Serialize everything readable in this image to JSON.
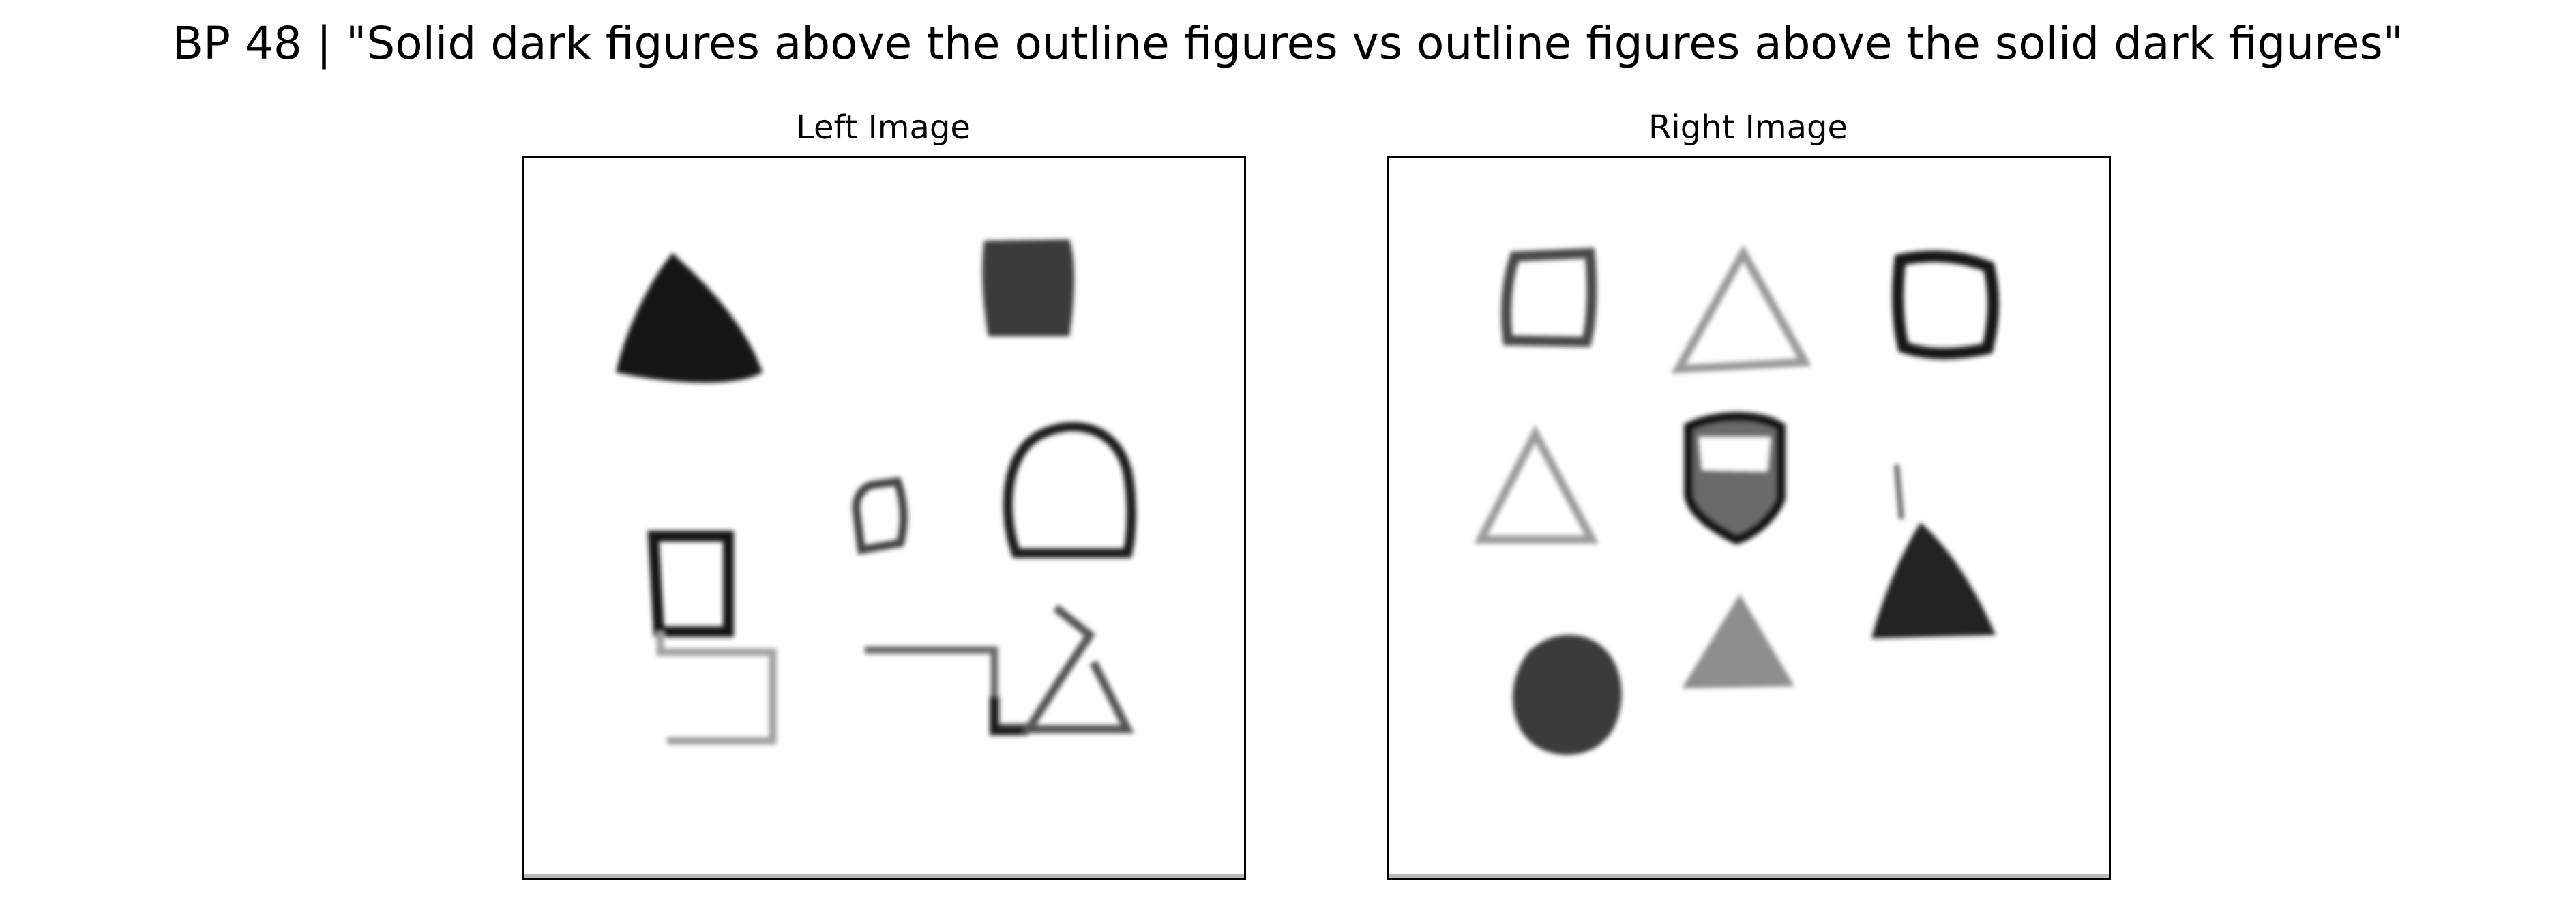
{
  "title": "BP 48 | \"Solid dark figures above the outline figures vs outline figures above the solid dark figures\"",
  "panels": [
    {
      "title": "Left Image"
    },
    {
      "title": "Right Image"
    }
  ],
  "colors": {
    "ink_dark": "#151515",
    "ink_mid": "#3a3a3a",
    "ink_gray": "#7a7a7a",
    "ink_light": "#a8a8a8",
    "frame": "#000000"
  }
}
